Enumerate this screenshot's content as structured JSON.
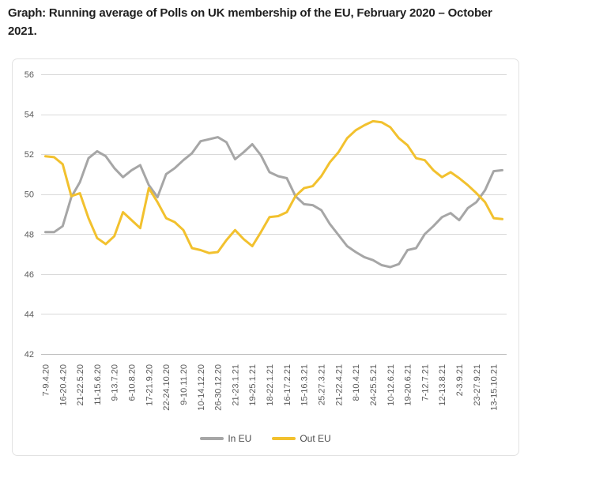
{
  "title": {
    "line1": "Graph: Running average of Polls on UK membership of the EU, February 2020 – October",
    "line2": "2021."
  },
  "chart_data": {
    "type": "line",
    "title": "Running average of Polls on UK membership of the EU, February 2020 – October 2021",
    "ylim": [
      42,
      56
    ],
    "y_ticks": [
      56,
      54,
      52,
      50,
      48,
      46,
      44,
      42
    ],
    "grid": "horizontal",
    "legend_position": "bottom",
    "x_tick_labels": [
      "7-9.4.20",
      "16-20.4.20",
      "21-22.5.20",
      "11-15.6.20",
      "9-13.7.20",
      "6-10.8.20",
      "17-21.9.20",
      "22-24.10.20",
      "9-10.11.20",
      "10-14.12.20",
      "26-30.12.20",
      "21-23.1.21",
      "19-25.1.21",
      "18-22.1.21",
      "16-17.2.21",
      "15-16.3.21",
      "25.27.3.21",
      "21-22.4.21",
      "8-10.4.21",
      "24-25.5.21",
      "10-12.6.21",
      "19-20.6.21",
      "7-12.7.21",
      "12-13.8.21",
      "2-3.9.21",
      "23-27.9.21",
      "13-15.10.21"
    ],
    "label_every_n_points": 2,
    "colors": {
      "in_eu": "#A6A6A6",
      "out_eu": "#F2C12E",
      "gridline": "#D9D9D9",
      "axis_line": "#BFBFBF",
      "tick_text": "#595959"
    },
    "series": [
      {
        "name": "In EU",
        "color": "#A6A6A6",
        "values": [
          48.1,
          48.1,
          48.4,
          49.85,
          50.6,
          51.8,
          52.15,
          51.9,
          51.3,
          50.85,
          51.2,
          51.45,
          50.45,
          49.85,
          51.0,
          51.3,
          51.7,
          52.05,
          52.65,
          52.75,
          52.85,
          52.6,
          51.75,
          52.1,
          52.5,
          51.95,
          51.1,
          50.9,
          50.8,
          49.9,
          49.5,
          49.45,
          49.2,
          48.5,
          47.95,
          47.4,
          47.1,
          46.85,
          46.7,
          46.45,
          46.35,
          46.5,
          47.2,
          47.3,
          48.0,
          48.4,
          48.85,
          49.05,
          48.7,
          49.3,
          49.6,
          50.2,
          51.15,
          51.2
        ]
      },
      {
        "name": "Out EU",
        "color": "#F2C12E",
        "values": [
          51.9,
          51.85,
          51.5,
          49.9,
          50.05,
          48.8,
          47.8,
          47.5,
          47.9,
          49.1,
          48.7,
          48.3,
          50.3,
          49.6,
          48.8,
          48.6,
          48.2,
          47.3,
          47.2,
          47.05,
          47.1,
          47.7,
          48.2,
          47.75,
          47.4,
          48.1,
          48.85,
          48.9,
          49.1,
          49.9,
          50.3,
          50.4,
          50.9,
          51.6,
          52.1,
          52.8,
          53.2,
          53.45,
          53.65,
          53.6,
          53.35,
          52.8,
          52.45,
          51.8,
          51.7,
          51.2,
          50.85,
          51.1,
          50.8,
          50.45,
          50.05,
          49.6,
          48.8,
          48.75
        ]
      }
    ]
  }
}
